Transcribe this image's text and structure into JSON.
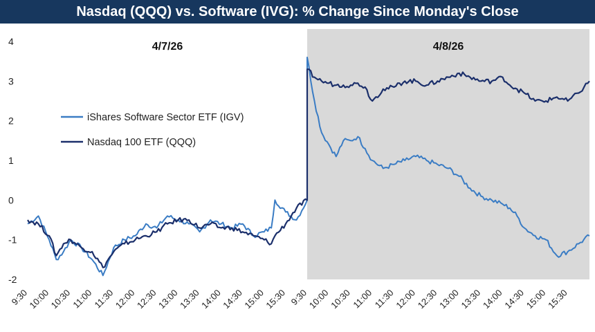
{
  "title": "Nasdaq (QQQ) vs. Software (IVG): % Change Since Monday's Close",
  "day_labels": [
    "4/7/26",
    "4/8/26"
  ],
  "legend": [
    "iShares Software Sector ETF (IGV)",
    "Nasdaq 100 ETF (QQQ)"
  ],
  "colors": {
    "title_bg": "#17375e",
    "igv": "#3a7cc4",
    "qqq": "#1b2f6b",
    "shade": "#d9d9d9"
  },
  "chart_data": {
    "type": "line",
    "title": "Nasdaq (QQQ) vs. Software (IVG): % Change Since Monday's Close",
    "x_ticks": [
      "9:30",
      "10:00",
      "10:30",
      "11:00",
      "11:30",
      "12:00",
      "12:30",
      "13:00",
      "13:30",
      "14:00",
      "14:30",
      "15:00",
      "15:30",
      "9:30",
      "10:00",
      "10:30",
      "11:00",
      "11:30",
      "12:00",
      "12:30",
      "13:00",
      "13:30",
      "14:00",
      "14:30",
      "15:00",
      "15:30"
    ],
    "ylim": [
      -2,
      4
    ],
    "y_ticks": [
      4,
      3,
      2,
      1,
      0,
      -1,
      -2
    ],
    "shaded_session": "4/8/26",
    "legend_position": "left",
    "series": [
      {
        "name": "iShares Software Sector ETF (IGV)",
        "x": [
          "4/7 9:30",
          "4/7 9:45",
          "4/7 10:00",
          "4/7 10:10",
          "4/7 10:20",
          "4/7 10:30",
          "4/7 10:45",
          "4/7 11:00",
          "4/7 11:15",
          "4/7 11:30",
          "4/7 11:45",
          "4/7 12:00",
          "4/7 12:15",
          "4/7 12:30",
          "4/7 12:45",
          "4/7 13:00",
          "4/7 13:15",
          "4/7 13:30",
          "4/7 13:45",
          "4/7 14:00",
          "4/7 14:15",
          "4/7 14:30",
          "4/7 14:45",
          "4/7 15:00",
          "4/7 15:10",
          "4/7 15:15",
          "4/7 15:30",
          "4/7 15:45",
          "4/7 16:00",
          "4/8 9:30",
          "4/8 9:40",
          "4/8 9:50",
          "4/8 10:00",
          "4/8 10:10",
          "4/8 10:20",
          "4/8 10:30",
          "4/8 10:40",
          "4/8 10:50",
          "4/8 11:00",
          "4/8 11:15",
          "4/8 11:30",
          "4/8 11:45",
          "4/8 12:00",
          "4/8 12:15",
          "4/8 12:30",
          "4/8 12:45",
          "4/8 13:00",
          "4/8 13:15",
          "4/8 13:30",
          "4/8 13:45",
          "4/8 14:00",
          "4/8 14:10",
          "4/8 14:20",
          "4/8 14:30",
          "4/8 14:45",
          "4/8 15:00",
          "4/8 15:15",
          "4/8 15:30",
          "4/8 15:45",
          "4/8 16:00"
        ],
        "values": [
          -0.6,
          -0.4,
          -1.0,
          -1.5,
          -1.3,
          -1.0,
          -1.2,
          -1.5,
          -1.9,
          -1.2,
          -1.0,
          -0.9,
          -0.6,
          -0.7,
          -0.4,
          -0.5,
          -0.6,
          -0.8,
          -0.5,
          -0.6,
          -0.7,
          -0.6,
          -0.9,
          -0.8,
          -0.7,
          0.0,
          -0.3,
          -0.5,
          0.0,
          3.6,
          2.5,
          1.7,
          1.4,
          1.1,
          1.5,
          1.5,
          1.6,
          1.3,
          1.0,
          0.8,
          0.9,
          1.0,
          1.1,
          1.0,
          0.9,
          0.8,
          0.6,
          0.3,
          0.1,
          0.0,
          -0.1,
          -0.2,
          -0.4,
          -0.7,
          -0.9,
          -1.0,
          -1.4,
          -1.3,
          -1.1,
          -0.9
        ]
      },
      {
        "name": "Nasdaq 100 ETF (QQQ)",
        "x": [
          "4/7 9:30",
          "4/7 9:45",
          "4/7 10:00",
          "4/7 10:10",
          "4/7 10:20",
          "4/7 10:30",
          "4/7 10:45",
          "4/7 11:00",
          "4/7 11:15",
          "4/7 11:30",
          "4/7 11:45",
          "4/7 12:00",
          "4/7 12:15",
          "4/7 12:30",
          "4/7 12:45",
          "4/7 13:00",
          "4/7 13:15",
          "4/7 13:30",
          "4/7 13:45",
          "4/7 14:00",
          "4/7 14:15",
          "4/7 14:30",
          "4/7 14:45",
          "4/7 15:00",
          "4/7 15:10",
          "4/7 15:15",
          "4/7 15:30",
          "4/7 15:45",
          "4/7 16:00",
          "4/8 9:30",
          "4/8 9:40",
          "4/8 9:50",
          "4/8 10:00",
          "4/8 10:10",
          "4/8 10:20",
          "4/8 10:30",
          "4/8 10:40",
          "4/8 10:50",
          "4/8 11:00",
          "4/8 11:15",
          "4/8 11:30",
          "4/8 11:45",
          "4/8 12:00",
          "4/8 12:15",
          "4/8 12:30",
          "4/8 12:45",
          "4/8 13:00",
          "4/8 13:15",
          "4/8 13:30",
          "4/8 13:45",
          "4/8 14:00",
          "4/8 14:10",
          "4/8 14:20",
          "4/8 14:30",
          "4/8 14:45",
          "4/8 15:00",
          "4/8 15:15",
          "4/8 15:30",
          "4/8 15:45",
          "4/8 16:00"
        ],
        "values": [
          -0.5,
          -0.6,
          -0.9,
          -1.4,
          -1.1,
          -1.0,
          -1.2,
          -1.3,
          -1.7,
          -1.3,
          -1.1,
          -1.0,
          -0.9,
          -0.8,
          -0.6,
          -0.5,
          -0.5,
          -0.7,
          -0.6,
          -0.7,
          -0.7,
          -0.8,
          -0.9,
          -1.0,
          -1.1,
          -0.9,
          -0.6,
          -0.2,
          0.0,
          3.3,
          3.1,
          3.0,
          2.95,
          2.9,
          2.9,
          2.9,
          2.95,
          2.85,
          2.5,
          2.8,
          2.85,
          3.0,
          3.0,
          2.9,
          3.0,
          3.1,
          3.2,
          3.1,
          3.0,
          3.0,
          3.1,
          2.9,
          2.8,
          2.7,
          2.5,
          2.5,
          2.6,
          2.5,
          2.7,
          3.0
        ]
      }
    ]
  }
}
